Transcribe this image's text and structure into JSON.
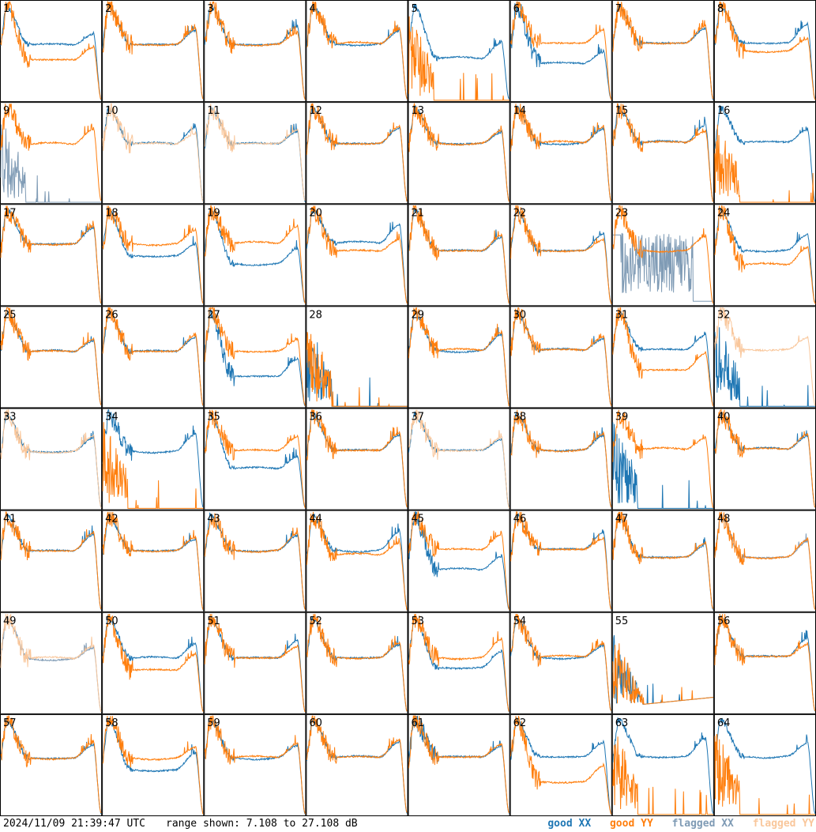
{
  "footer": {
    "timestamp": "2024/11/09 21:39:47 UTC",
    "range_label": "range shown: 7.108 to 27.108 dB"
  },
  "legend": [
    {
      "label": "good XX",
      "color": "#1f77b4"
    },
    {
      "label": "good YY",
      "color": "#ff7f0e"
    },
    {
      "label": "flagged XX",
      "color": "#7f9bb5"
    },
    {
      "label": "flagged YY",
      "color": "#f9c79c"
    }
  ],
  "chart_data": {
    "type": "line",
    "grid": {
      "rows": 8,
      "cols": 8
    },
    "y_units": "dB",
    "ylim": [
      7.108,
      27.108
    ],
    "panel_labels": [
      "1",
      "2",
      "3",
      "4",
      "5",
      "6",
      "7",
      "8",
      "9",
      "10",
      "11",
      "12",
      "13",
      "14",
      "15",
      "16",
      "17",
      "18",
      "19",
      "20",
      "21",
      "22",
      "23",
      "24",
      "25",
      "26",
      "27",
      "28",
      "29",
      "30",
      "31",
      "32",
      "33",
      "34",
      "35",
      "36",
      "37",
      "38",
      "39",
      "40",
      "41",
      "42",
      "43",
      "44",
      "45",
      "46",
      "47",
      "48",
      "49",
      "50",
      "51",
      "52",
      "53",
      "54",
      "55",
      "56",
      "57",
      "58",
      "59",
      "60",
      "61",
      "62",
      "63",
      "64"
    ],
    "flagged_xx": [
      9,
      23,
      48,
      49
    ],
    "flagged_yy": [
      10,
      11,
      32,
      33,
      37,
      49
    ]
  }
}
